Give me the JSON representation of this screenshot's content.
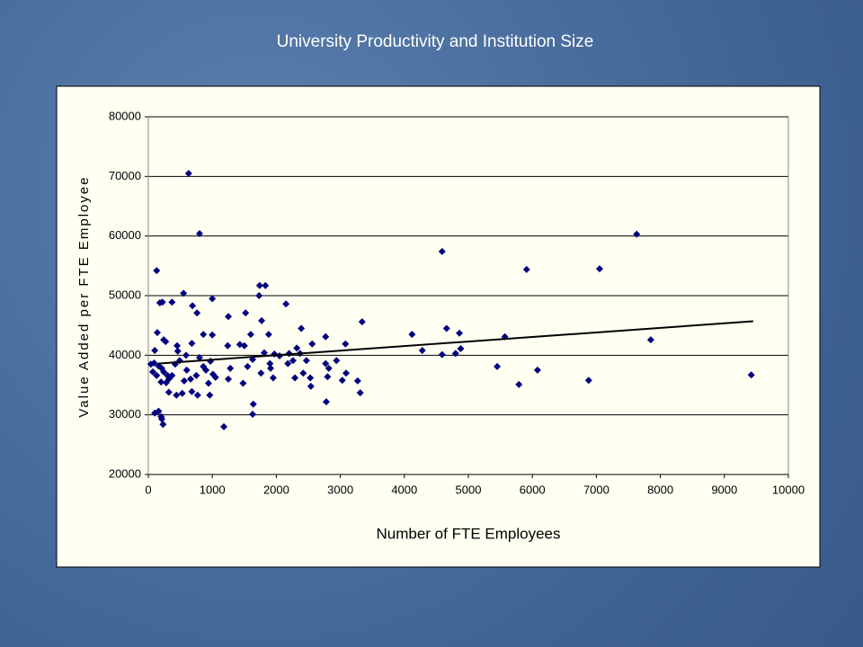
{
  "chart_data": {
    "type": "scatter",
    "title": "University Productivity and Institution Size",
    "x_label": "Number of FTE Employees",
    "y_label": "Value Added per FTE Employee",
    "color": "#000080",
    "grid": true,
    "xlim": [
      0,
      10000
    ],
    "ylim": [
      20000,
      80000
    ],
    "xticks": [
      0,
      1000,
      2000,
      3000,
      4000,
      5000,
      6000,
      7000,
      8000,
      9000,
      10000
    ],
    "yticks": [
      20000,
      30000,
      40000,
      50000,
      60000,
      70000,
      80000
    ],
    "x": [
      630,
      800,
      130,
      180,
      220,
      550,
      1000,
      690,
      760,
      370,
      860,
      1000,
      140,
      270,
      240,
      680,
      450,
      460,
      100,
      40,
      90,
      160,
      210,
      240,
      300,
      320,
      280,
      200,
      130,
      70,
      420,
      490,
      590,
      600,
      660,
      560,
      530,
      440,
      320,
      680,
      370,
      160,
      100,
      200,
      230,
      210,
      770,
      940,
      960,
      900,
      970,
      1010,
      1050,
      750,
      800,
      860,
      1180,
      1250,
      1240,
      1280,
      1250,
      1430,
      1500,
      1520,
      1550,
      1480,
      1600,
      1630,
      1640,
      1630,
      1740,
      1830,
      1730,
      1770,
      1880,
      1810,
      1760,
      1910,
      1970,
      1900,
      1950,
      2050,
      2150,
      2180,
      2200,
      2260,
      2320,
      2370,
      2390,
      2290,
      2420,
      2470,
      2530,
      2540,
      2560,
      2770,
      2770,
      2780,
      2800,
      2820,
      2940,
      3030,
      3080,
      3090,
      3270,
      3310,
      3340,
      4120,
      4280,
      4590,
      4590,
      4660,
      4800,
      4860,
      4880,
      5450,
      5570,
      5790,
      5910,
      6080,
      6880,
      7050,
      7630,
      7850,
      9420
    ],
    "values": [
      70500,
      60400,
      54200,
      48800,
      48900,
      50400,
      49500,
      48300,
      47100,
      48900,
      43500,
      43400,
      43800,
      42300,
      42600,
      42000,
      41600,
      40700,
      40800,
      38500,
      38700,
      38200,
      37800,
      37200,
      36600,
      36000,
      35400,
      35500,
      36600,
      37200,
      38500,
      39100,
      40000,
      37500,
      36000,
      35700,
      33600,
      33300,
      33800,
      33900,
      36600,
      30600,
      30300,
      29700,
      28400,
      29300,
      33300,
      35300,
      33300,
      37500,
      39000,
      36800,
      36300,
      36600,
      39600,
      38100,
      28000,
      46500,
      41600,
      37800,
      36000,
      41800,
      41600,
      47100,
      38100,
      35300,
      43500,
      39300,
      31800,
      30100,
      51700,
      51700,
      50000,
      45800,
      43500,
      40400,
      37000,
      37800,
      40200,
      38600,
      36200,
      39900,
      48600,
      38600,
      40300,
      39100,
      41200,
      40300,
      44500,
      36200,
      37000,
      39100,
      36200,
      34800,
      41900,
      43100,
      38600,
      32200,
      36400,
      37800,
      39100,
      35800,
      41900,
      37000,
      35700,
      33700,
      45600,
      43500,
      40800,
      57400,
      40100,
      44500,
      40300,
      43700,
      41100,
      38100,
      43100,
      35100,
      54400,
      37500,
      35800,
      54500,
      60300,
      42600,
      36700
    ],
    "trendline": {
      "color": "#000000",
      "x": [
        150,
        9450
      ],
      "values": [
        38600,
        45700
      ]
    }
  }
}
